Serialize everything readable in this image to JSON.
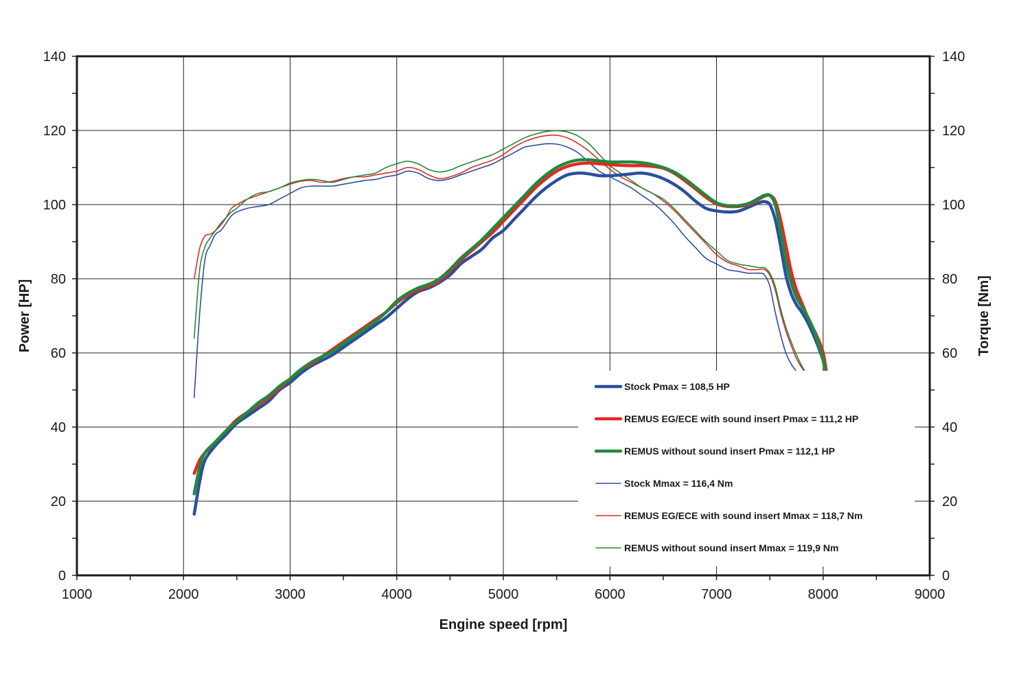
{
  "chart_data": {
    "type": "line",
    "xlabel": "Engine speed [rpm]",
    "ylabel_left": "Power [HP]",
    "ylabel_right": "Torque [Nm]",
    "xlim": [
      1000,
      9000
    ],
    "ylim_left": [
      0,
      140
    ],
    "ylim_right": [
      0,
      140
    ],
    "x_ticks": [
      1000,
      2000,
      3000,
      4000,
      5000,
      6000,
      7000,
      8000,
      9000
    ],
    "x_tick_labels": [
      "1000",
      "2000",
      "3000",
      "4000",
      "5000",
      "6000",
      "7000",
      "8000",
      "9000"
    ],
    "y_ticks": [
      0,
      20,
      40,
      60,
      80,
      100,
      120,
      140
    ],
    "y_tick_labels": [
      "0",
      "20",
      "40",
      "60",
      "80",
      "100",
      "120",
      "140"
    ],
    "grid": true,
    "legend_position": "bottom-right",
    "series": [
      {
        "name": "Stock Pmax = 108,5 HP",
        "color": "#2b4f9e",
        "style": "thick",
        "x": [
          2100,
          2150,
          2200,
          2300,
          2400,
          2500,
          2600,
          2700,
          2800,
          2900,
          3000,
          3100,
          3200,
          3300,
          3400,
          3500,
          3600,
          3700,
          3800,
          3900,
          4000,
          4100,
          4200,
          4300,
          4400,
          4500,
          4600,
          4700,
          4800,
          4900,
          5000,
          5100,
          5200,
          5300,
          5400,
          5500,
          5600,
          5700,
          5800,
          5900,
          6000,
          6100,
          6200,
          6300,
          6400,
          6500,
          6600,
          6700,
          6800,
          6900,
          7000,
          7100,
          7200,
          7300,
          7400,
          7450,
          7500,
          7550,
          7600,
          7650,
          7700,
          7750,
          7800,
          7850,
          7900,
          7950,
          8000,
          8030
        ],
        "y": [
          16.5,
          25,
          31,
          35,
          38,
          41,
          43,
          45,
          47,
          50,
          52,
          54.5,
          56.5,
          58,
          59.5,
          61.5,
          63.5,
          65.5,
          67.5,
          69.5,
          72,
          74.5,
          76.5,
          77.5,
          79,
          81,
          84,
          86,
          88,
          91,
          93,
          96,
          99,
          102,
          104.5,
          106.5,
          108,
          108.5,
          108.3,
          107.8,
          107.8,
          108,
          108.3,
          108.5,
          108,
          107,
          105.5,
          103.5,
          101,
          99,
          98.3,
          98,
          98.2,
          99.3,
          100.5,
          100.8,
          100,
          96,
          89,
          81,
          76,
          73,
          71,
          68.5,
          65.5,
          62,
          58,
          55
        ]
      },
      {
        "name": "REMUS EG/ECE with sound insert Pmax = 111,2 HP",
        "color": "#e42823",
        "style": "thick",
        "x": [
          2100,
          2150,
          2200,
          2300,
          2400,
          2500,
          2600,
          2700,
          2800,
          2900,
          3000,
          3100,
          3200,
          3300,
          3400,
          3500,
          3600,
          3700,
          3800,
          3900,
          4000,
          4100,
          4200,
          4300,
          4400,
          4500,
          4600,
          4700,
          4800,
          4900,
          5000,
          5100,
          5200,
          5300,
          5400,
          5500,
          5600,
          5700,
          5800,
          5900,
          6000,
          6100,
          6200,
          6300,
          6400,
          6500,
          6600,
          6700,
          6800,
          6900,
          7000,
          7100,
          7200,
          7300,
          7400,
          7450,
          7500,
          7550,
          7600,
          7650,
          7700,
          7750,
          7800,
          7850,
          7900,
          7950,
          8000,
          8030
        ],
        "y": [
          27.5,
          31,
          33,
          36,
          39,
          42,
          44,
          46,
          48,
          50.5,
          53,
          55.5,
          57,
          59,
          61,
          63,
          65,
          67,
          69,
          71,
          73.5,
          75.5,
          77,
          78,
          79.5,
          82,
          85,
          87.5,
          90,
          92.5,
          95.5,
          98.5,
          101.5,
          104.5,
          107,
          109,
          110.3,
          111,
          111.2,
          111,
          110.8,
          110.6,
          110.5,
          110.5,
          110.3,
          109.8,
          108.5,
          106.5,
          104.3,
          102,
          100.2,
          99.5,
          99.5,
          100,
          101.5,
          102.3,
          102.5,
          101,
          96,
          89,
          82,
          77,
          73.5,
          70,
          67,
          64,
          60,
          55
        ]
      },
      {
        "name": "REMUS without sound insert Pmax = 112,1 HP",
        "color": "#1f8a3c",
        "style": "thick",
        "x": [
          2100,
          2150,
          2200,
          2300,
          2400,
          2500,
          2600,
          2700,
          2800,
          2900,
          3000,
          3100,
          3200,
          3300,
          3400,
          3500,
          3600,
          3700,
          3800,
          3900,
          4000,
          4100,
          4200,
          4300,
          4400,
          4500,
          4600,
          4700,
          4800,
          4900,
          5000,
          5100,
          5200,
          5300,
          5400,
          5500,
          5600,
          5700,
          5800,
          5900,
          6000,
          6100,
          6200,
          6300,
          6400,
          6500,
          6600,
          6700,
          6800,
          6900,
          7000,
          7100,
          7200,
          7300,
          7400,
          7450,
          7500,
          7550,
          7600,
          7650,
          7700,
          7750,
          7800,
          7850,
          7900,
          7950,
          8000,
          8030
        ],
        "y": [
          22,
          29,
          33,
          36,
          39,
          41.5,
          44,
          46.5,
          48.5,
          51,
          53,
          55.5,
          57.5,
          59,
          60.5,
          62.5,
          64.5,
          66.5,
          68.5,
          71,
          74,
          76,
          77.5,
          78.5,
          80,
          82.5,
          85.5,
          88,
          90.5,
          93.5,
          96.5,
          99.5,
          102.5,
          105.5,
          108,
          110,
          111.3,
          112,
          112.1,
          111.8,
          111.5,
          111.5,
          111.5,
          111.3,
          110.8,
          110,
          108.8,
          107,
          104.8,
          102.5,
          100.5,
          99.7,
          99.7,
          100.3,
          101.8,
          102.5,
          102.5,
          100,
          93,
          85,
          79,
          75,
          72.5,
          70,
          67,
          63,
          58,
          53
        ]
      },
      {
        "name": "Stock Mmax = 116,4 Nm",
        "color": "#2b4f9e",
        "style": "thin",
        "x": [
          2100,
          2150,
          2200,
          2250,
          2300,
          2350,
          2400,
          2450,
          2500,
          2600,
          2700,
          2800,
          2900,
          3000,
          3100,
          3200,
          3300,
          3400,
          3500,
          3600,
          3700,
          3800,
          3900,
          4000,
          4100,
          4200,
          4300,
          4400,
          4500,
          4600,
          4700,
          4800,
          4900,
          5000,
          5100,
          5200,
          5300,
          5400,
          5500,
          5600,
          5700,
          5800,
          5900,
          6000,
          6100,
          6200,
          6300,
          6400,
          6500,
          6600,
          6700,
          6800,
          6900,
          7000,
          7100,
          7200,
          7300,
          7400,
          7450,
          7500,
          7550,
          7600,
          7650,
          7700,
          7750,
          7800,
          7850
        ],
        "y": [
          48,
          70,
          85,
          89,
          92,
          93,
          95,
          97,
          98,
          99,
          99.5,
          100,
          101.5,
          103,
          104.5,
          105,
          105,
          105,
          105.5,
          106,
          106.5,
          106.8,
          107.5,
          108,
          109,
          108.5,
          107,
          106.5,
          107,
          108,
          109,
          110,
          111,
          112.5,
          114,
          115.5,
          116,
          116.4,
          116.3,
          115.5,
          114,
          111.5,
          109,
          107.5,
          106,
          104.5,
          102.5,
          100.5,
          98,
          95,
          91.5,
          88.5,
          85.5,
          84,
          82.5,
          82,
          81.5,
          81.5,
          81,
          78,
          71,
          65,
          60,
          57,
          55,
          53,
          52
        ]
      },
      {
        "name": "REMUS EG/ECE with sound insert Mmax = 118,7 Nm",
        "color": "#e42823",
        "style": "thin",
        "x": [
          2100,
          2150,
          2200,
          2250,
          2300,
          2350,
          2400,
          2450,
          2500,
          2600,
          2700,
          2800,
          2900,
          3000,
          3100,
          3200,
          3300,
          3400,
          3500,
          3600,
          3700,
          3800,
          3900,
          4000,
          4100,
          4200,
          4300,
          4400,
          4500,
          4600,
          4700,
          4800,
          4900,
          5000,
          5100,
          5200,
          5300,
          5400,
          5500,
          5600,
          5700,
          5800,
          5900,
          6000,
          6100,
          6200,
          6300,
          6400,
          6500,
          6600,
          6700,
          6800,
          6900,
          7000,
          7100,
          7200,
          7300,
          7400,
          7450,
          7500,
          7550,
          7600,
          7650,
          7700,
          7750,
          7800,
          7850
        ],
        "y": [
          80,
          88,
          91.5,
          92,
          93,
          94.5,
          96.5,
          99,
          100,
          101.5,
          102.5,
          103.5,
          104.5,
          105.5,
          106.3,
          106.5,
          106,
          106.3,
          107,
          107.5,
          107.5,
          108,
          108.5,
          109,
          110,
          109.5,
          108,
          107,
          107.5,
          108.5,
          110,
          111,
          112,
          113.5,
          115.5,
          117,
          118,
          118.6,
          118.7,
          118,
          116.5,
          114.5,
          112,
          109.5,
          107.5,
          106,
          104.5,
          103,
          101,
          98.5,
          95.5,
          92.5,
          89.5,
          86.5,
          84.5,
          83.5,
          82.5,
          82.5,
          82.5,
          81,
          77,
          71,
          66,
          62,
          58.5,
          56,
          54
        ]
      },
      {
        "name": "REMUS without sound insert Mmax = 119,9 Nm",
        "color": "#1f8a3c",
        "style": "thin",
        "x": [
          2100,
          2150,
          2200,
          2250,
          2300,
          2350,
          2400,
          2450,
          2500,
          2600,
          2700,
          2800,
          2900,
          3000,
          3100,
          3200,
          3300,
          3400,
          3500,
          3600,
          3700,
          3800,
          3900,
          4000,
          4100,
          4200,
          4300,
          4400,
          4500,
          4600,
          4700,
          4800,
          4900,
          5000,
          5100,
          5200,
          5300,
          5400,
          5500,
          5600,
          5700,
          5800,
          5900,
          6000,
          6100,
          6200,
          6300,
          6400,
          6500,
          6600,
          6700,
          6800,
          6900,
          7000,
          7100,
          7200,
          7300,
          7400,
          7450,
          7500,
          7550,
          7600,
          7650,
          7700,
          7750,
          7800,
          7850
        ],
        "y": [
          64,
          82,
          88.5,
          91,
          93,
          95,
          96.5,
          98,
          99,
          101.5,
          103,
          103.5,
          104.5,
          105.8,
          106.5,
          106.8,
          106.5,
          106,
          106.8,
          107.5,
          108,
          108.5,
          110,
          111,
          111.7,
          111,
          109.5,
          108.8,
          109.3,
          110.5,
          111.5,
          112.5,
          113.5,
          115,
          116.5,
          118,
          119,
          119.7,
          119.9,
          119.6,
          118.5,
          116.5,
          113.5,
          110.5,
          108.5,
          106.5,
          104.5,
          103,
          101.5,
          99,
          96,
          93,
          90,
          87.5,
          85,
          84,
          83.5,
          83,
          83,
          81.5,
          78,
          72,
          67,
          63,
          59.5,
          56.5,
          54
        ]
      }
    ]
  }
}
